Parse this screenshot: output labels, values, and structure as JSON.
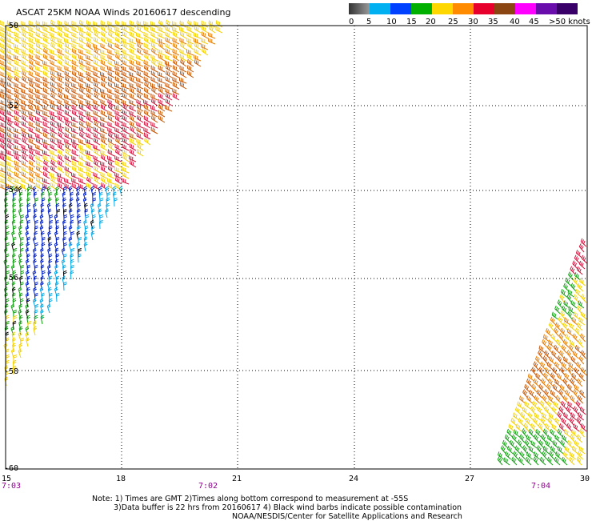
{
  "title": "ASCAT 25KM NOAA Winds 20160617 descending",
  "legend": {
    "labels": [
      "0",
      "5",
      "10",
      "15",
      "20",
      "25",
      "30",
      "35",
      "40",
      "45",
      ">50 knots"
    ],
    "colors": [
      "#555555",
      "#00b0f0",
      "#0040ff",
      "#00b000",
      "#ffd700",
      "#ff8c00",
      "#e8002c",
      "#8b4513",
      "#ff00ff",
      "#6a0dad",
      "#3a006a"
    ]
  },
  "map": {
    "lat_labels": [
      "-50",
      "-52",
      "-54",
      "-56",
      "-58",
      "-60"
    ],
    "lon_labels": [
      "15",
      "18",
      "21",
      "24",
      "27",
      "30"
    ],
    "lat_range": [
      -60,
      -50
    ],
    "lon_range": [
      15,
      30
    ],
    "grid": true,
    "grid_style": "dotted",
    "time_labels": [
      {
        "text": "7:03",
        "lon": 15
      },
      {
        "text": "7:02",
        "lon": 20.2
      },
      {
        "text": "7:04",
        "lon": 28.8
      }
    ]
  },
  "notes": {
    "line1": "Note: 1) Times are GMT 2)Times along bottom correspond to measurement at -55S",
    "line2": "3)Data buffer is 22 hrs from 20160617 4) Black wind barbs indicate possible contamination",
    "line3": "NOAA/NESDIS/Center for Satellite Applications and Research"
  },
  "wind_colors": {
    "yellow": "#f5d000",
    "orange": "#e87a00",
    "darkorange": "#c85400",
    "red": "#d4103a",
    "blue": "#0020c8",
    "cyan": "#00a8e8",
    "green": "#10a010",
    "black": "#000000"
  }
}
